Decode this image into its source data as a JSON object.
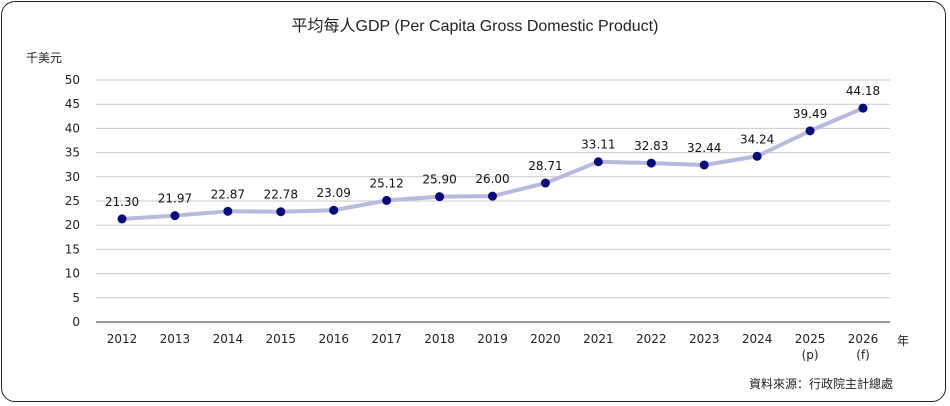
{
  "chart_data": {
    "type": "line",
    "title": "平均每人GDP (Per Capita Gross Domestic Product)",
    "ylabel": "千美元",
    "xlabel": "年",
    "categories": [
      "2012",
      "2013",
      "2014",
      "2015",
      "2016",
      "2017",
      "2018",
      "2019",
      "2020",
      "2021",
      "2022",
      "2023",
      "2024",
      "2025\n(p)",
      "2026\n(f)"
    ],
    "values": [
      21.3,
      21.97,
      22.87,
      22.78,
      23.09,
      25.12,
      25.9,
      26.0,
      28.71,
      33.11,
      32.83,
      32.44,
      34.24,
      39.49,
      44.18
    ],
    "data_labels": [
      "21.30",
      "21.97",
      "22.87",
      "22.78",
      "23.09",
      "25.12",
      "25.90",
      "26.00",
      "28.71",
      "33.11",
      "32.83",
      "32.44",
      "34.24",
      "39.49",
      "44.18"
    ],
    "yticks": [
      "0",
      "5",
      "10",
      "15",
      "20",
      "25",
      "30",
      "35",
      "40",
      "45",
      "50"
    ],
    "ylim": [
      0,
      50
    ],
    "grid": true,
    "legend": "none",
    "source": "資料來源：行政院主計總處",
    "colors": {
      "line": "#b9b9e0",
      "marker": "#0a0a78",
      "grid": "#c8c8c8"
    }
  }
}
